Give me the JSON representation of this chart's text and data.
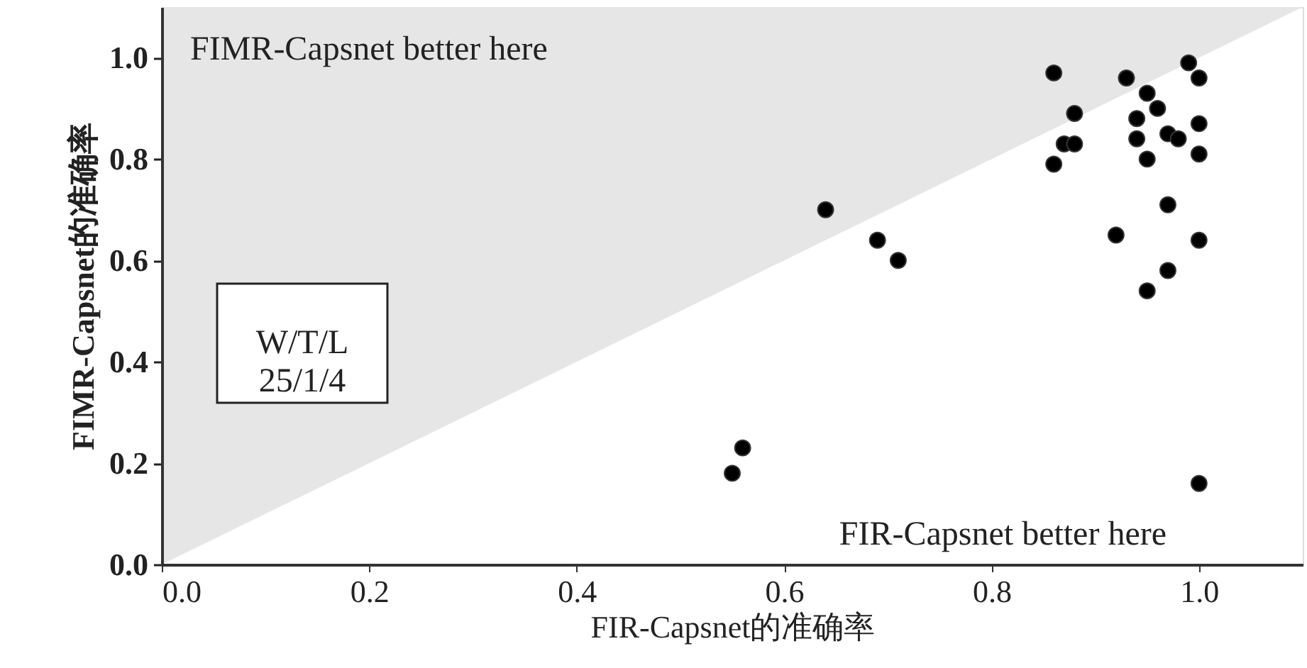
{
  "chart_data": {
    "type": "scatter",
    "xlabel": "FIR-Capsnet的准确率",
    "ylabel": "FIMR-Capsnet的准确率",
    "xlim": [
      0,
      1.1
    ],
    "ylim": [
      0,
      1.1
    ],
    "xticks": [
      {
        "value": 0,
        "label": "0.0"
      },
      0.2,
      0.4,
      0.6,
      0.8,
      {
        "value": 1.0,
        "label": "1.0"
      }
    ],
    "yticks": [
      {
        "value": 0,
        "label": "0.0"
      },
      0.2,
      0.4,
      0.6,
      0.8,
      {
        "value": 1.0,
        "label": "1.0"
      }
    ],
    "grid": false,
    "annotations": [
      "FIMR-Capsnet better here",
      "FIR-Capsnet better here",
      "W/T/L\n25/1/4"
    ],
    "series": [
      {
        "type": "area",
        "color": "#e6e6e6",
        "x": [
          0,
          1.1
        ],
        "values": [
          0,
          1.1
        ]
      },
      {
        "color": "#000000",
        "marker": "circle",
        "x": [
          0.86,
          0.93,
          0.99,
          1.0,
          0.95,
          0.96,
          0.88,
          0.94,
          1.0,
          0.87,
          0.88,
          0.94,
          0.97,
          0.98,
          0.86,
          0.95,
          1.0,
          0.64,
          0.69,
          0.71,
          0.97,
          0.92,
          1.0,
          0.97,
          0.95,
          1.0,
          0.55,
          0.56
        ],
        "values": [
          0.97,
          0.96,
          0.99,
          0.96,
          0.93,
          0.9,
          0.89,
          0.88,
          0.87,
          0.83,
          0.83,
          0.84,
          0.85,
          0.84,
          0.79,
          0.8,
          0.81,
          0.7,
          0.64,
          0.6,
          0.71,
          0.65,
          0.64,
          0.58,
          0.54,
          0.16,
          0.18,
          0.23
        ]
      }
    ]
  }
}
